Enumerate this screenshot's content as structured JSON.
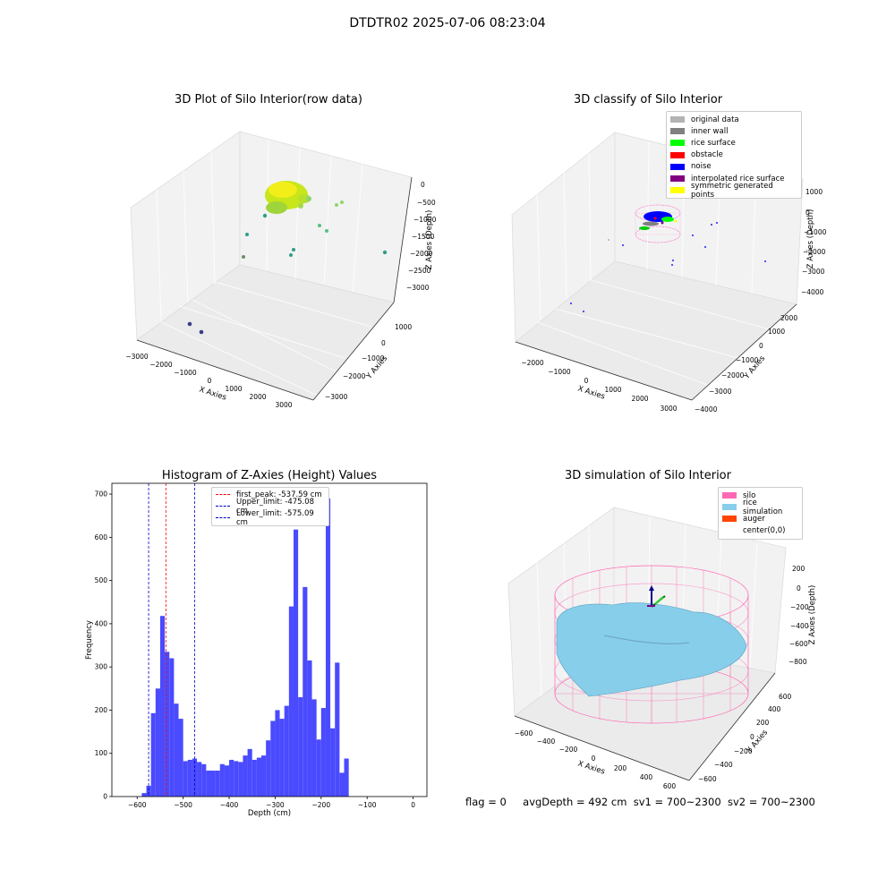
{
  "suptitle": "DTDTR02 2025-07-06 08:23:04",
  "panel_raw": {
    "title": "3D Plot of Silo Interior(row data)",
    "xlabel": "X Axies",
    "ylabel": "Y Axies",
    "zlabel": "Z Axies (Depth)",
    "xticks": [
      "−3000",
      "−2000",
      "−1000",
      "0",
      "1000",
      "2000",
      "3000"
    ],
    "yticks": [
      "−3000",
      "−2000",
      "−1000",
      "0",
      "1000"
    ],
    "zticks": [
      "0",
      "−500",
      "−1000",
      "−1500",
      "−2000",
      "−2500",
      "−3000"
    ]
  },
  "panel_class": {
    "title": "3D classify of Silo Interior",
    "xlabel": "X Axies",
    "ylabel": "Y Axies",
    "zlabel": "Z Axies (Depth)",
    "xticks": [
      "−2000",
      "−1000",
      "0",
      "1000",
      "2000",
      "3000"
    ],
    "yticks": [
      "−4000",
      "−3000",
      "−2000",
      "−1000",
      "0",
      "1000",
      "2000"
    ],
    "zticks": [
      "1000",
      "0",
      "−1000",
      "−2000",
      "−3000",
      "−4000"
    ],
    "legend": [
      {
        "label": "original data",
        "color": "#b3b3b3"
      },
      {
        "label": "inner wall",
        "color": "#808080"
      },
      {
        "label": "rice surface",
        "color": "#00ff00"
      },
      {
        "label": "obstacle",
        "color": "#ff0000"
      },
      {
        "label": "noise",
        "color": "#0000ff"
      },
      {
        "label": "interpolated rice surface",
        "color": "#800080"
      },
      {
        "label": "symmetric generated points",
        "color": "#ffff00"
      }
    ]
  },
  "panel_sim": {
    "title": "3D simulation of Silo Interior",
    "xlabel": "X Axies",
    "ylabel": "Y Axies",
    "zlabel": "Z Axies (Depth)",
    "xticks": [
      "−600",
      "−400",
      "−200",
      "0",
      "200",
      "400",
      "600"
    ],
    "yticks": [
      "−600",
      "−400",
      "−200",
      "0",
      "200",
      "400",
      "600"
    ],
    "zticks": [
      "200",
      "0",
      "−200",
      "−400",
      "−600",
      "−800"
    ],
    "legend": [
      {
        "label": "silo",
        "color": "#ff69b4"
      },
      {
        "label": "rice simulation",
        "color": "#87ceeb"
      },
      {
        "label": "auger",
        "color": "#ff4500"
      },
      {
        "label": "center(0,0)",
        "color": "#ffffff"
      }
    ]
  },
  "chart_data": {
    "type": "bar",
    "title": "Histogram of Z-Axies (Height) Values",
    "xlabel": "Depth (cm)",
    "ylabel": "Frequency",
    "xlim": [
      -655,
      30
    ],
    "ylim": [
      0,
      725
    ],
    "xticks": [
      -600,
      -500,
      -400,
      -300,
      -200,
      -100,
      0
    ],
    "yticks": [
      0,
      100,
      200,
      300,
      400,
      500,
      600,
      700
    ],
    "bin_width": 10,
    "bin_starts": [
      -590,
      -580,
      -570,
      -560,
      -550,
      -540,
      -530,
      -520,
      -510,
      -500,
      -490,
      -480,
      -470,
      -460,
      -450,
      -440,
      -430,
      -420,
      -410,
      -400,
      -390,
      -380,
      -370,
      -360,
      -350,
      -340,
      -330,
      -320,
      -310,
      -300,
      -290,
      -280,
      -270,
      -260,
      -250,
      -240,
      -230,
      -220,
      -210,
      -200,
      -190,
      -180,
      -170,
      -160,
      -150,
      -140,
      -130,
      -120,
      -110,
      -100,
      -90,
      -80,
      -70,
      -60,
      -50,
      -40,
      -30,
      -20,
      -10,
      0
    ],
    "values": [
      8,
      25,
      193,
      250,
      418,
      335,
      320,
      215,
      180,
      82,
      85,
      88,
      80,
      75,
      60,
      60,
      60,
      75,
      72,
      85,
      82,
      80,
      95,
      110,
      85,
      90,
      95,
      130,
      175,
      200,
      180,
      210,
      440,
      618,
      230,
      485,
      315,
      225,
      132,
      205,
      690,
      158,
      310,
      55,
      88,
      0,
      0,
      0,
      0,
      0,
      0,
      0,
      0,
      0,
      0,
      0,
      0,
      0,
      0,
      0
    ],
    "color": "#4a4aff",
    "vlines": [
      {
        "label": "first_peak: -537.59 cm",
        "x": -537.59,
        "color": "#ff0000"
      },
      {
        "label": "Upper_limit: -475.08 cm",
        "x": -475.08,
        "color": "#0000cc"
      },
      {
        "label": "Lower_limit: -575.09 cm",
        "x": -575.09,
        "color": "#0000cc"
      }
    ]
  },
  "footer": {
    "flag": "flag = 0",
    "avg": "avgDepth = 492 cm",
    "sv1": "sv1 = 700~2300",
    "sv2": "sv2 = 700~2300"
  }
}
